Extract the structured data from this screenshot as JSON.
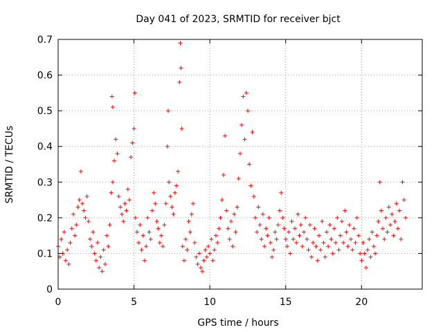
{
  "chart_data": {
    "type": "scatter",
    "title": "Day 041 of 2023, SRMTID for receiver bjct",
    "xlabel": "GPS time / hours",
    "ylabel": "SRMTID / TECUs",
    "xlim": [
      0,
      24
    ],
    "ylim": [
      0,
      0.7
    ],
    "xticks": [
      0,
      5,
      10,
      15,
      20
    ],
    "yticks": [
      0,
      0.1,
      0.2,
      0.3,
      0.4,
      0.5,
      0.6,
      0.7
    ],
    "grid": true,
    "marker": "+",
    "color": "#ff0000",
    "series": [
      {
        "name": "SRMTID",
        "points": [
          [
            0.0,
            0.12
          ],
          [
            0.1,
            0.09
          ],
          [
            0.2,
            0.14
          ],
          [
            0.3,
            0.1
          ],
          [
            0.4,
            0.16
          ],
          [
            0.5,
            0.08
          ],
          [
            0.6,
            0.11
          ],
          [
            0.7,
            0.07
          ],
          [
            0.8,
            0.13
          ],
          [
            0.9,
            0.17
          ],
          [
            1.0,
            0.21
          ],
          [
            1.1,
            0.15
          ],
          [
            1.2,
            0.18
          ],
          [
            1.3,
            0.23
          ],
          [
            1.4,
            0.25
          ],
          [
            1.5,
            0.33
          ],
          [
            1.6,
            0.24
          ],
          [
            1.7,
            0.22
          ],
          [
            1.8,
            0.2
          ],
          [
            1.9,
            0.26
          ],
          [
            2.0,
            0.19
          ],
          [
            2.1,
            0.14
          ],
          [
            2.2,
            0.12
          ],
          [
            2.3,
            0.16
          ],
          [
            2.4,
            0.1
          ],
          [
            2.5,
            0.08
          ],
          [
            2.6,
            0.13
          ],
          [
            2.7,
            0.06
          ],
          [
            2.8,
            0.09
          ],
          [
            2.9,
            0.05
          ],
          [
            3.0,
            0.11
          ],
          [
            3.1,
            0.07
          ],
          [
            3.2,
            0.15
          ],
          [
            3.3,
            0.12
          ],
          [
            3.4,
            0.18
          ],
          [
            3.5,
            0.27
          ],
          [
            3.6,
            0.3
          ],
          [
            3.7,
            0.36
          ],
          [
            3.8,
            0.42
          ],
          [
            3.9,
            0.38
          ],
          [
            3.55,
            0.54
          ],
          [
            3.6,
            0.51
          ],
          [
            4.0,
            0.26
          ],
          [
            4.1,
            0.23
          ],
          [
            4.2,
            0.21
          ],
          [
            4.3,
            0.19
          ],
          [
            4.4,
            0.24
          ],
          [
            4.5,
            0.22
          ],
          [
            4.6,
            0.28
          ],
          [
            4.7,
            0.25
          ],
          [
            4.8,
            0.37
          ],
          [
            4.9,
            0.41
          ],
          [
            5.0,
            0.45
          ],
          [
            5.05,
            0.55
          ],
          [
            5.1,
            0.2
          ],
          [
            5.2,
            0.16
          ],
          [
            5.3,
            0.13
          ],
          [
            5.4,
            0.18
          ],
          [
            5.5,
            0.11
          ],
          [
            5.6,
            0.15
          ],
          [
            5.7,
            0.08
          ],
          [
            5.8,
            0.12
          ],
          [
            5.9,
            0.2
          ],
          [
            6.0,
            0.16
          ],
          [
            6.1,
            0.14
          ],
          [
            6.2,
            0.22
          ],
          [
            6.3,
            0.27
          ],
          [
            6.4,
            0.24
          ],
          [
            6.5,
            0.19
          ],
          [
            6.6,
            0.17
          ],
          [
            6.7,
            0.13
          ],
          [
            6.8,
            0.15
          ],
          [
            6.9,
            0.12
          ],
          [
            7.0,
            0.18
          ],
          [
            7.1,
            0.24
          ],
          [
            7.2,
            0.4
          ],
          [
            7.25,
            0.5
          ],
          [
            7.3,
            0.3
          ],
          [
            7.4,
            0.26
          ],
          [
            7.5,
            0.23
          ],
          [
            7.6,
            0.21
          ],
          [
            7.7,
            0.27
          ],
          [
            7.8,
            0.29
          ],
          [
            7.9,
            0.33
          ],
          [
            8.0,
            0.58
          ],
          [
            8.05,
            0.69
          ],
          [
            8.1,
            0.62
          ],
          [
            8.15,
            0.45
          ],
          [
            8.2,
            0.12
          ],
          [
            8.3,
            0.08
          ],
          [
            8.4,
            0.14
          ],
          [
            8.5,
            0.11
          ],
          [
            8.6,
            0.19
          ],
          [
            8.7,
            0.16
          ],
          [
            8.8,
            0.21
          ],
          [
            8.9,
            0.24
          ],
          [
            9.0,
            0.13
          ],
          [
            9.1,
            0.09
          ],
          [
            9.2,
            0.07
          ],
          [
            9.3,
            0.1
          ],
          [
            9.4,
            0.06
          ],
          [
            9.5,
            0.05
          ],
          [
            9.6,
            0.08
          ],
          [
            9.7,
            0.11
          ],
          [
            9.8,
            0.09
          ],
          [
            9.9,
            0.12
          ],
          [
            10.0,
            0.1
          ],
          [
            10.1,
            0.14
          ],
          [
            10.2,
            0.08
          ],
          [
            10.3,
            0.11
          ],
          [
            10.4,
            0.15
          ],
          [
            10.5,
            0.13
          ],
          [
            10.6,
            0.17
          ],
          [
            10.7,
            0.2
          ],
          [
            10.8,
            0.25
          ],
          [
            10.9,
            0.32
          ],
          [
            11.0,
            0.43
          ],
          [
            11.1,
            0.22
          ],
          [
            11.2,
            0.17
          ],
          [
            11.3,
            0.14
          ],
          [
            11.4,
            0.19
          ],
          [
            11.5,
            0.12
          ],
          [
            11.6,
            0.21
          ],
          [
            11.7,
            0.16
          ],
          [
            11.8,
            0.23
          ],
          [
            11.9,
            0.31
          ],
          [
            12.0,
            0.38
          ],
          [
            12.1,
            0.46
          ],
          [
            12.2,
            0.54
          ],
          [
            12.3,
            0.42
          ],
          [
            12.4,
            0.55
          ],
          [
            12.5,
            0.5
          ],
          [
            12.6,
            0.35
          ],
          [
            12.7,
            0.29
          ],
          [
            12.8,
            0.44
          ],
          [
            12.9,
            0.26
          ],
          [
            13.0,
            0.2
          ],
          [
            13.1,
            0.16
          ],
          [
            13.2,
            0.23
          ],
          [
            13.3,
            0.18
          ],
          [
            13.4,
            0.14
          ],
          [
            13.5,
            0.21
          ],
          [
            13.6,
            0.12
          ],
          [
            13.7,
            0.17
          ],
          [
            13.8,
            0.15
          ],
          [
            13.9,
            0.2
          ],
          [
            14.0,
            0.13
          ],
          [
            14.1,
            0.09
          ],
          [
            14.2,
            0.11
          ],
          [
            14.3,
            0.16
          ],
          [
            14.4,
            0.14
          ],
          [
            14.5,
            0.18
          ],
          [
            14.6,
            0.22
          ],
          [
            14.7,
            0.27
          ],
          [
            14.8,
            0.2
          ],
          [
            14.9,
            0.17
          ],
          [
            15.0,
            0.14
          ],
          [
            15.1,
            0.12
          ],
          [
            15.2,
            0.16
          ],
          [
            15.3,
            0.1
          ],
          [
            15.4,
            0.19
          ],
          [
            15.5,
            0.14
          ],
          [
            15.6,
            0.17
          ],
          [
            15.7,
            0.13
          ],
          [
            15.8,
            0.21
          ],
          [
            15.9,
            0.15
          ],
          [
            16.0,
            0.18
          ],
          [
            16.1,
            0.12
          ],
          [
            16.2,
            0.16
          ],
          [
            16.3,
            0.2
          ],
          [
            16.4,
            0.14
          ],
          [
            16.5,
            0.11
          ],
          [
            16.6,
            0.18
          ],
          [
            16.7,
            0.09
          ],
          [
            16.8,
            0.13
          ],
          [
            16.9,
            0.17
          ],
          [
            17.0,
            0.12
          ],
          [
            17.1,
            0.08
          ],
          [
            17.2,
            0.15
          ],
          [
            17.3,
            0.11
          ],
          [
            17.4,
            0.19
          ],
          [
            17.5,
            0.13
          ],
          [
            17.6,
            0.09
          ],
          [
            17.7,
            0.16
          ],
          [
            17.8,
            0.12
          ],
          [
            17.9,
            0.18
          ],
          [
            18.0,
            0.14
          ],
          [
            18.1,
            0.1
          ],
          [
            18.2,
            0.17
          ],
          [
            18.3,
            0.13
          ],
          [
            18.4,
            0.2
          ],
          [
            18.5,
            0.11
          ],
          [
            18.6,
            0.15
          ],
          [
            18.7,
            0.19
          ],
          [
            18.8,
            0.13
          ],
          [
            18.9,
            0.22
          ],
          [
            19.0,
            0.16
          ],
          [
            19.1,
            0.12
          ],
          [
            19.2,
            0.18
          ],
          [
            19.3,
            0.14
          ],
          [
            19.4,
            0.11
          ],
          [
            19.5,
            0.17
          ],
          [
            19.6,
            0.13
          ],
          [
            19.7,
            0.2
          ],
          [
            19.8,
            0.15
          ],
          [
            19.9,
            0.1
          ],
          [
            20.0,
            0.08
          ],
          [
            20.1,
            0.13
          ],
          [
            20.2,
            0.1
          ],
          [
            20.3,
            0.06
          ],
          [
            20.4,
            0.11
          ],
          [
            20.5,
            0.14
          ],
          [
            20.6,
            0.09
          ],
          [
            20.7,
            0.16
          ],
          [
            20.8,
            0.12
          ],
          [
            20.9,
            0.1
          ],
          [
            21.0,
            0.15
          ],
          [
            21.1,
            0.19
          ],
          [
            21.2,
            0.3
          ],
          [
            21.3,
            0.22
          ],
          [
            21.4,
            0.17
          ],
          [
            21.5,
            0.14
          ],
          [
            21.6,
            0.2
          ],
          [
            21.7,
            0.16
          ],
          [
            21.8,
            0.23
          ],
          [
            21.9,
            0.18
          ],
          [
            22.0,
            0.21
          ],
          [
            22.1,
            0.15
          ],
          [
            22.2,
            0.19
          ],
          [
            22.3,
            0.24
          ],
          [
            22.4,
            0.17
          ],
          [
            22.5,
            0.22
          ],
          [
            22.6,
            0.14
          ],
          [
            22.7,
            0.3
          ],
          [
            22.8,
            0.25
          ],
          [
            22.9,
            0.2
          ]
        ]
      }
    ]
  }
}
